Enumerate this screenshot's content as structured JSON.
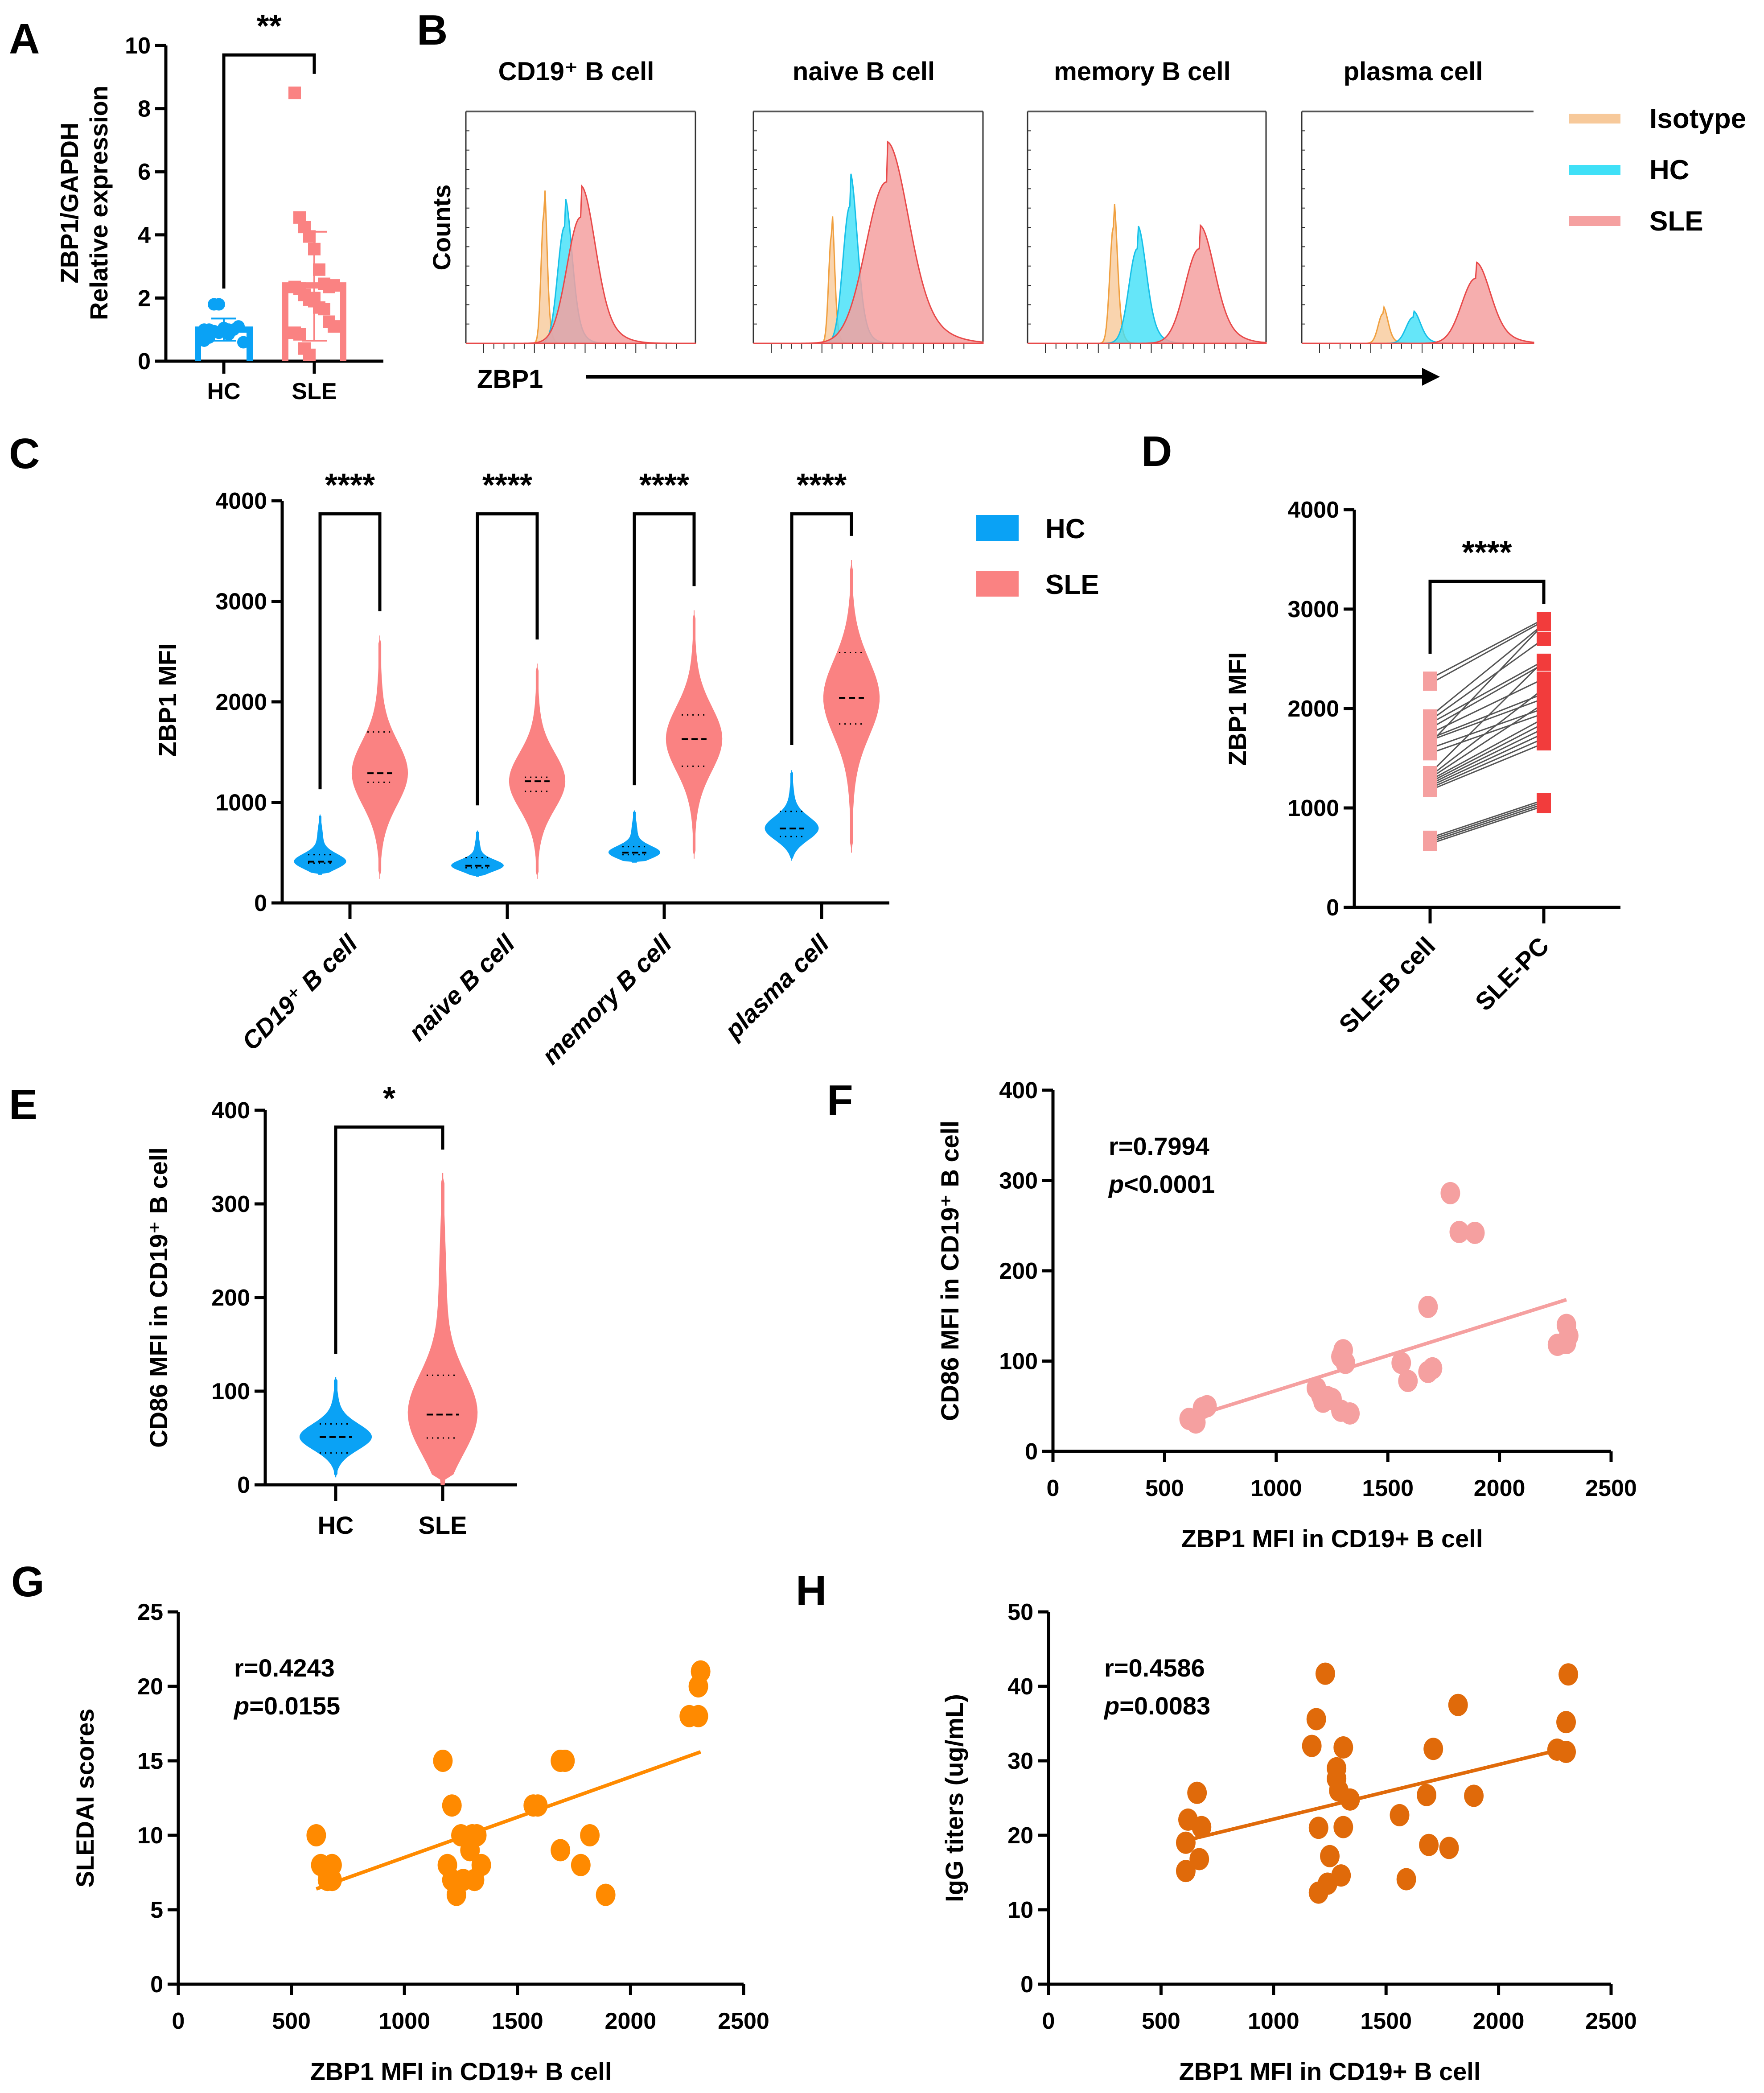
{
  "colors": {
    "hc": "#0aa2f5",
    "sle": "#fa8282",
    "sle_dark": "#f23c3c",
    "sle_light": "#f5a0a0",
    "isotype": "#f7c99a",
    "hc_hist": "#3fe0f7",
    "orange": "#ff8a00",
    "orange_dark": "#e06a0a",
    "pair_line": "#555555"
  },
  "chart_data": [
    {
      "id": "A",
      "panel_letter": "A",
      "type": "bar",
      "title": "",
      "xlabel": "",
      "ylabel": "ZBP1/GAPDH\nRelative expression",
      "ylabel_lines": [
        "ZBP1/GAPDH",
        "Relative expression"
      ],
      "ylim": [
        0,
        10
      ],
      "yticks": [
        0,
        2,
        4,
        6,
        8,
        10
      ],
      "categories": [
        "HC",
        "SLE"
      ],
      "bar_means": [
        1.0,
        2.4
      ],
      "error_sd": [
        [
          0.65,
          1.35
        ],
        [
          0.65,
          4.1
        ]
      ],
      "points": {
        "HC": [
          1.0,
          1.0,
          0.95,
          0.9,
          1.05,
          0.85,
          1.0,
          1.1,
          0.6,
          0.65,
          0.75,
          1.8,
          1.8,
          0.95,
          1.0
        ],
        "SLE": [
          8.5,
          4.55,
          4.25,
          3.95,
          3.55,
          2.9,
          2.45,
          2.35,
          2.4,
          2.35,
          2.3,
          2.1,
          1.95,
          1.9,
          1.7,
          1.65,
          1.25,
          1.1,
          0.9,
          0.85,
          0.4,
          0.2,
          2.0
        ]
      },
      "significance": "**"
    },
    {
      "id": "B",
      "panel_letter": "B",
      "type": "area",
      "subplots": [
        "CD19⁺ B cell",
        "naive B cell",
        "memory B cell",
        "plasma cell"
      ],
      "ylabel": "Counts",
      "xlabel": "ZBP1",
      "legend": [
        "Isotype",
        "HC",
        "SLE"
      ],
      "legend_position": "right",
      "peaks": [
        {
          "isotype": {
            "pos": 0.34,
            "height": 0.71,
            "width": 0.012
          },
          "hc": {
            "pos": 0.43,
            "height": 0.63,
            "width": 0.03
          },
          "sle": {
            "pos": 0.5,
            "height": 0.68,
            "width": 0.06
          }
        },
        {
          "isotype": {
            "pos": 0.34,
            "height": 0.59,
            "width": 0.012
          },
          "hc": {
            "pos": 0.42,
            "height": 0.74,
            "width": 0.03
          },
          "sle": {
            "pos": 0.58,
            "height": 0.87,
            "width": 0.09
          }
        },
        {
          "isotype": {
            "pos": 0.36,
            "height": 0.63,
            "width": 0.015
          },
          "hc": {
            "pos": 0.46,
            "height": 0.51,
            "width": 0.035
          },
          "sle": {
            "pos": 0.72,
            "height": 0.51,
            "width": 0.06
          }
        },
        {
          "isotype": {
            "pos": 0.35,
            "height": 0.16,
            "width": 0.02
          },
          "hc": {
            "pos": 0.48,
            "height": 0.14,
            "width": 0.03
          },
          "sle": {
            "pos": 0.75,
            "height": 0.35,
            "width": 0.06
          }
        }
      ]
    },
    {
      "id": "C",
      "panel_letter": "C",
      "type": "violin",
      "ylabel": "ZBP1 MFI",
      "ylim": [
        0,
        4000
      ],
      "yticks": [
        0,
        1000,
        2000,
        3000,
        4000
      ],
      "categories": [
        "CD19⁺ B cell",
        "naive B cell",
        "memory B cell",
        "plasma cell"
      ],
      "legend": [
        "HC",
        "SLE"
      ],
      "legend_position": "right",
      "significance": [
        "****",
        "****",
        "****",
        "****"
      ],
      "series": [
        {
          "name": "HC",
          "min": [
            280,
            260,
            400,
            420
          ],
          "max": [
            880,
            720,
            920,
            1320
          ],
          "median": [
            410,
            370,
            500,
            740
          ],
          "q1": [
            395,
            350,
            480,
            660
          ],
          "q3": [
            480,
            450,
            560,
            910
          ]
        },
        {
          "name": "SLE",
          "min": [
            240,
            240,
            440,
            500
          ],
          "max": [
            2660,
            2380,
            2910,
            3410
          ],
          "median": [
            1290,
            1210,
            1630,
            2040
          ],
          "q1": [
            1200,
            1110,
            1360,
            1780
          ],
          "q3": [
            1700,
            1250,
            1870,
            2490
          ]
        }
      ]
    },
    {
      "id": "D",
      "panel_letter": "D",
      "type": "line",
      "ylabel": "ZBP1 MFI",
      "ylim": [
        0,
        4000
      ],
      "yticks": [
        0,
        1000,
        2000,
        3000,
        4000
      ],
      "categories": [
        "SLE-B cell",
        "SLE-PC"
      ],
      "significance": "****",
      "pairs": [
        [
          2300,
          2900
        ],
        [
          2250,
          2880
        ],
        [
          1920,
          2850
        ],
        [
          1880,
          2700
        ],
        [
          1850,
          2480
        ],
        [
          1800,
          2450
        ],
        [
          1750,
          2300
        ],
        [
          1700,
          2150
        ],
        [
          1680,
          2100
        ],
        [
          1650,
          2850
        ],
        [
          1600,
          2000
        ],
        [
          1550,
          1950
        ],
        [
          1350,
          2480
        ],
        [
          1320,
          2200
        ],
        [
          1300,
          2050
        ],
        [
          1280,
          1900
        ],
        [
          1260,
          1850
        ],
        [
          1240,
          1800
        ],
        [
          1220,
          1750
        ],
        [
          1200,
          1700
        ],
        [
          1180,
          1650
        ],
        [
          700,
          1080
        ],
        [
          680,
          1060
        ],
        [
          660,
          1040
        ],
        [
          640,
          1020
        ]
      ]
    },
    {
      "id": "E",
      "panel_letter": "E",
      "type": "violin",
      "ylabel": "CD86 MFI in CD19⁺ B cell",
      "ylim": [
        0,
        400
      ],
      "yticks": [
        0,
        100,
        200,
        300,
        400
      ],
      "categories": [
        "HC",
        "SLE"
      ],
      "significance": "*",
      "series": [
        {
          "name": "HC",
          "min": 8,
          "max": 115,
          "median": 51,
          "q1": 34,
          "q3": 65
        },
        {
          "name": "SLE",
          "min": 0,
          "max": 333,
          "median": 75,
          "q1": 50,
          "q3": 117
        }
      ]
    },
    {
      "id": "F",
      "panel_letter": "F",
      "type": "scatter",
      "xlabel": "ZBP1 MFI in CD19+ B cell",
      "ylabel": "CD86 MFI in CD19⁺ B cell",
      "xlim": [
        0,
        2500
      ],
      "ylim": [
        0,
        400
      ],
      "xticks": [
        0,
        500,
        1000,
        1500,
        2000,
        2500
      ],
      "yticks": [
        0,
        100,
        200,
        300,
        400
      ],
      "annotation_r": "r=0.7994",
      "annotation_p_italic": "p",
      "annotation_p_rest": "<0.0001",
      "fit": {
        "x": [
          620,
          2300
        ],
        "y": [
          38,
          168
        ]
      },
      "points": [
        [
          610,
          36
        ],
        [
          640,
          32
        ],
        [
          670,
          48
        ],
        [
          690,
          50
        ],
        [
          1180,
          70
        ],
        [
          1200,
          62
        ],
        [
          1210,
          55
        ],
        [
          1230,
          60
        ],
        [
          1250,
          58
        ],
        [
          1290,
          105
        ],
        [
          1300,
          112
        ],
        [
          1310,
          98
        ],
        [
          1290,
          45
        ],
        [
          1330,
          42
        ],
        [
          1560,
          98
        ],
        [
          1590,
          78
        ],
        [
          1680,
          88
        ],
        [
          1700,
          92
        ],
        [
          1680,
          160
        ],
        [
          1780,
          286
        ],
        [
          1820,
          243
        ],
        [
          1890,
          242
        ],
        [
          2260,
          118
        ],
        [
          2300,
          140
        ],
        [
          2310,
          128
        ],
        [
          2300,
          120
        ]
      ]
    },
    {
      "id": "G",
      "panel_letter": "G",
      "type": "scatter",
      "xlabel": "ZBP1 MFI in CD19+ B cell",
      "ylabel": "SLEDAI scores",
      "xlim": [
        0,
        2500
      ],
      "ylim": [
        0,
        25
      ],
      "xticks": [
        0,
        500,
        1000,
        1500,
        2000,
        2500
      ],
      "yticks": [
        0,
        5,
        10,
        15,
        20,
        25
      ],
      "annotation_r": "r=0.4243",
      "annotation_p_italic": "p",
      "annotation_p_rest": "=0.0155",
      "fit": {
        "x": [
          610,
          2310
        ],
        "y": [
          6.4,
          15.6
        ]
      },
      "points": [
        [
          610,
          10
        ],
        [
          630,
          8
        ],
        [
          680,
          8
        ],
        [
          660,
          7
        ],
        [
          680,
          7
        ],
        [
          1170,
          15
        ],
        [
          1190,
          8
        ],
        [
          1210,
          12
        ],
        [
          1210,
          7
        ],
        [
          1230,
          6
        ],
        [
          1250,
          10
        ],
        [
          1260,
          7
        ],
        [
          1290,
          9
        ],
        [
          1300,
          10
        ],
        [
          1310,
          7
        ],
        [
          1340,
          8
        ],
        [
          1320,
          10
        ],
        [
          1570,
          12
        ],
        [
          1590,
          12
        ],
        [
          1690,
          15
        ],
        [
          1710,
          15
        ],
        [
          1690,
          9
        ],
        [
          1780,
          8
        ],
        [
          1820,
          10
        ],
        [
          1890,
          6
        ],
        [
          2260,
          18
        ],
        [
          2300,
          18
        ],
        [
          2300,
          20
        ],
        [
          2310,
          21
        ]
      ]
    },
    {
      "id": "H",
      "panel_letter": "H",
      "type": "scatter",
      "xlabel": "ZBP1 MFI in CD19+ B cell",
      "ylabel": "IgG titers (ug/mL)",
      "xlim": [
        0,
        2500
      ],
      "ylim": [
        0,
        50
      ],
      "xticks": [
        0,
        500,
        1000,
        1500,
        2000,
        2500
      ],
      "yticks": [
        0,
        10,
        20,
        30,
        40,
        50
      ],
      "annotation_r": "r=0.4586",
      "annotation_p_italic": "p",
      "annotation_p_rest": "=0.0083",
      "fit": {
        "x": [
          610,
          2300
        ],
        "y": [
          19.3,
          31.7
        ]
      },
      "points": [
        [
          610,
          15.2
        ],
        [
          610,
          19
        ],
        [
          620,
          22.1
        ],
        [
          660,
          25.7
        ],
        [
          680,
          21.1
        ],
        [
          670,
          16.8
        ],
        [
          1170,
          32
        ],
        [
          1190,
          35.6
        ],
        [
          1200,
          12.3
        ],
        [
          1200,
          21
        ],
        [
          1230,
          41.7
        ],
        [
          1240,
          13.5
        ],
        [
          1250,
          17.2
        ],
        [
          1280,
          29
        ],
        [
          1280,
          27.6
        ],
        [
          1290,
          26
        ],
        [
          1300,
          14.6
        ],
        [
          1310,
          31.8
        ],
        [
          1310,
          21.1
        ],
        [
          1340,
          24.8
        ],
        [
          1560,
          22.7
        ],
        [
          1590,
          14.1
        ],
        [
          1680,
          25.4
        ],
        [
          1690,
          18.7
        ],
        [
          1710,
          31.6
        ],
        [
          1780,
          18.3
        ],
        [
          1820,
          37.5
        ],
        [
          1890,
          25.3
        ],
        [
          2260,
          31.5
        ],
        [
          2300,
          31.2
        ],
        [
          2300,
          35.2
        ],
        [
          2310,
          41.6
        ]
      ]
    }
  ]
}
